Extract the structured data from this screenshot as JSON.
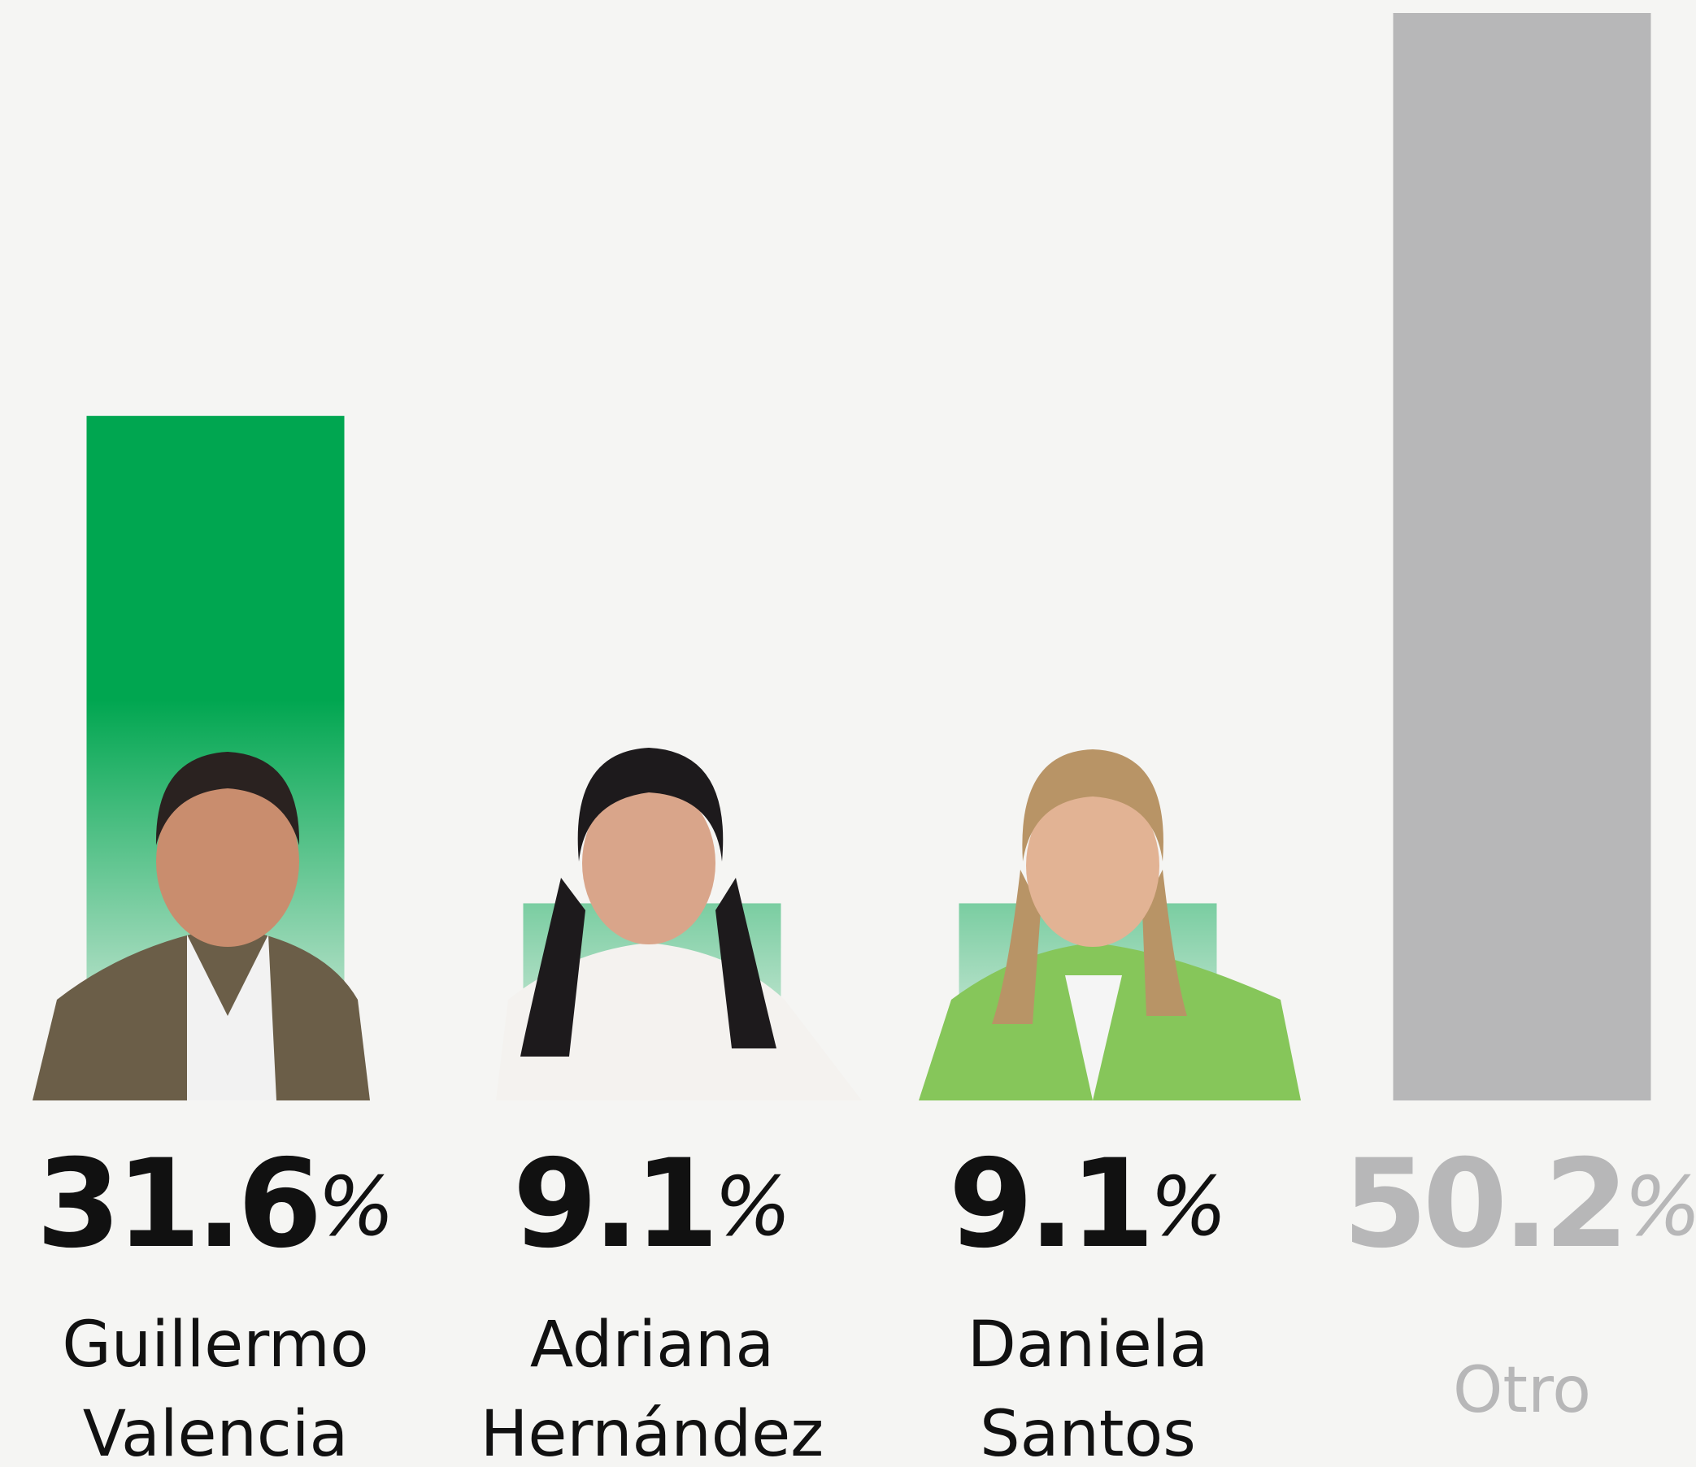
{
  "chart_data": {
    "type": "bar",
    "categories": [
      "Guillermo Valencia",
      "Adriana Hernández",
      "Daniela Santos",
      "Otro"
    ],
    "values": [
      31.6,
      9.1,
      9.1,
      50.2
    ],
    "value_labels": [
      "31.6%",
      "9.1%",
      "9.1%",
      "50.2%"
    ],
    "colors": [
      "#00a650",
      "#00a650",
      "#00a650",
      "#b7b7b8"
    ]
  }
}
